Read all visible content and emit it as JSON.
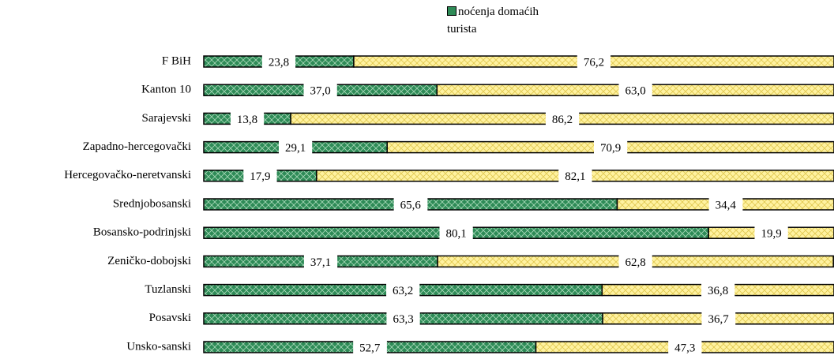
{
  "chart_data": {
    "type": "bar",
    "orientation": "horizontal",
    "stacked": true,
    "categories": [
      "F BiH",
      "Kanton 10",
      "Sarajevski",
      "Zapadno-hercegovački",
      "Hercegovačko-neretvanski",
      "Srednjobosanski",
      "Bosansko-podrinjski",
      "Zeničko-dobojski",
      "Tuzlanski",
      "Posavski",
      "Unsko-sanski"
    ],
    "series": [
      {
        "name": "noćenja domaćih turista",
        "color": "#2e8b57",
        "values": [
          23.8,
          37.0,
          13.8,
          29.1,
          17.9,
          65.6,
          80.1,
          37.1,
          63.2,
          63.3,
          52.7
        ],
        "value_labels": [
          "23,8",
          "37,0",
          "13,8",
          "29,1",
          "17,9",
          "65,6",
          "80,1",
          "37,1",
          "63,2",
          "63,3",
          "52,7"
        ]
      },
      {
        "color": "#fff2a0",
        "values": [
          76.2,
          63.0,
          86.2,
          70.9,
          82.1,
          34.4,
          19.9,
          62.8,
          36.8,
          36.7,
          47.3
        ],
        "value_labels": [
          "76,2",
          "63,0",
          "86,2",
          "70,9",
          "82,1",
          "34,4",
          "19,9",
          "62,8",
          "36,8",
          "36,7",
          "47,3"
        ]
      }
    ],
    "xlim": [
      0,
      100
    ]
  }
}
